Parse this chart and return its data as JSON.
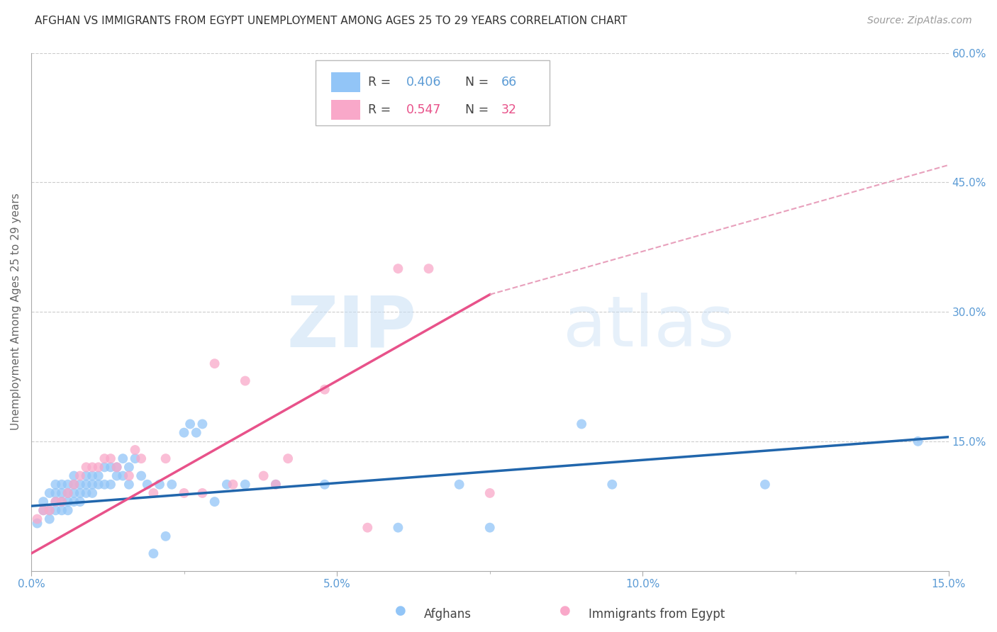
{
  "title": "AFGHAN VS IMMIGRANTS FROM EGYPT UNEMPLOYMENT AMONG AGES 25 TO 29 YEARS CORRELATION CHART",
  "source": "Source: ZipAtlas.com",
  "ylabel": "Unemployment Among Ages 25 to 29 years",
  "right_ytick_labels": [
    "60.0%",
    "45.0%",
    "30.0%",
    "15.0%"
  ],
  "right_ytick_values": [
    0.6,
    0.45,
    0.3,
    0.15
  ],
  "xlim": [
    0.0,
    0.15
  ],
  "ylim": [
    0.0,
    0.6
  ],
  "watermark_text": "ZIPatlas",
  "afghan_color": "#92c5f7",
  "egypt_color": "#f9a8c9",
  "afghan_line_color": "#2166ac",
  "egypt_line_color": "#e8528a",
  "dashed_line_color": "#e8a0bc",
  "background_color": "#ffffff",
  "legend_afghan_label": "Afghans",
  "legend_egypt_label": "Immigrants from Egypt",
  "title_fontsize": 11,
  "source_fontsize": 10,
  "axis_label_fontsize": 11,
  "tick_fontsize": 11,
  "afghan_x": [
    0.001,
    0.002,
    0.002,
    0.003,
    0.003,
    0.003,
    0.004,
    0.004,
    0.004,
    0.004,
    0.005,
    0.005,
    0.005,
    0.005,
    0.006,
    0.006,
    0.006,
    0.006,
    0.007,
    0.007,
    0.007,
    0.007,
    0.008,
    0.008,
    0.008,
    0.009,
    0.009,
    0.009,
    0.01,
    0.01,
    0.01,
    0.011,
    0.011,
    0.012,
    0.012,
    0.013,
    0.013,
    0.014,
    0.014,
    0.015,
    0.015,
    0.016,
    0.016,
    0.017,
    0.018,
    0.019,
    0.02,
    0.021,
    0.022,
    0.023,
    0.025,
    0.026,
    0.027,
    0.028,
    0.03,
    0.032,
    0.035,
    0.04,
    0.048,
    0.06,
    0.07,
    0.075,
    0.09,
    0.095,
    0.12,
    0.145
  ],
  "afghan_y": [
    0.055,
    0.07,
    0.08,
    0.06,
    0.07,
    0.09,
    0.07,
    0.08,
    0.09,
    0.1,
    0.07,
    0.08,
    0.09,
    0.1,
    0.07,
    0.08,
    0.09,
    0.1,
    0.08,
    0.09,
    0.1,
    0.11,
    0.08,
    0.09,
    0.1,
    0.09,
    0.1,
    0.11,
    0.09,
    0.1,
    0.11,
    0.1,
    0.11,
    0.1,
    0.12,
    0.1,
    0.12,
    0.11,
    0.12,
    0.11,
    0.13,
    0.1,
    0.12,
    0.13,
    0.11,
    0.1,
    0.02,
    0.1,
    0.04,
    0.1,
    0.16,
    0.17,
    0.16,
    0.17,
    0.08,
    0.1,
    0.1,
    0.1,
    0.1,
    0.05,
    0.1,
    0.05,
    0.17,
    0.1,
    0.1,
    0.15
  ],
  "egypt_x": [
    0.001,
    0.002,
    0.003,
    0.004,
    0.005,
    0.006,
    0.007,
    0.008,
    0.009,
    0.01,
    0.011,
    0.012,
    0.013,
    0.014,
    0.016,
    0.017,
    0.018,
    0.02,
    0.022,
    0.025,
    0.028,
    0.03,
    0.033,
    0.035,
    0.038,
    0.04,
    0.042,
    0.048,
    0.055,
    0.06,
    0.065,
    0.075
  ],
  "egypt_y": [
    0.06,
    0.07,
    0.07,
    0.08,
    0.08,
    0.09,
    0.1,
    0.11,
    0.12,
    0.12,
    0.12,
    0.13,
    0.13,
    0.12,
    0.11,
    0.14,
    0.13,
    0.09,
    0.13,
    0.09,
    0.09,
    0.24,
    0.1,
    0.22,
    0.11,
    0.1,
    0.13,
    0.21,
    0.05,
    0.35,
    0.35,
    0.09
  ],
  "afghan_line_x": [
    0.0,
    0.15
  ],
  "afghan_line_y": [
    0.075,
    0.155
  ],
  "egypt_line_x": [
    0.0,
    0.075
  ],
  "egypt_line_y": [
    0.02,
    0.32
  ],
  "dashed_line_x": [
    0.075,
    0.165
  ],
  "dashed_line_y": [
    0.32,
    0.5
  ]
}
